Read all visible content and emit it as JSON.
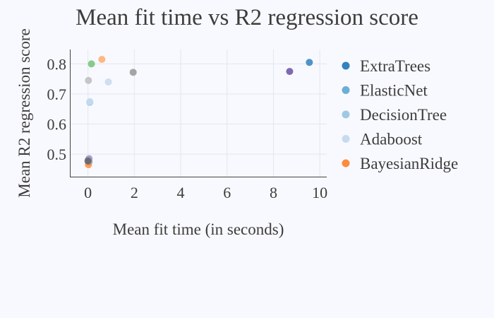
{
  "chart_data": {
    "type": "scatter",
    "title": "Mean fit time vs R2 regression score",
    "xlabel": "Mean fit time (in seconds)",
    "ylabel": "Mean R2 regression score",
    "xlim": [
      -0.75,
      10.3
    ],
    "ylim": [
      0.425,
      0.848
    ],
    "xticks": [
      0,
      2,
      4,
      6,
      8,
      10
    ],
    "yticks": [
      0.5,
      0.6,
      0.7,
      0.8
    ],
    "grid": true,
    "legend_position": "right",
    "series": [
      {
        "name": "ExtraTrees",
        "color": "#3182bd",
        "x": [
          9.55
        ],
        "y": [
          0.805
        ]
      },
      {
        "name": "ElasticNet",
        "color": "#6baed6",
        "x": [
          0.05
        ],
        "y": [
          0.475
        ]
      },
      {
        "name": "DecisionTree",
        "color": "#9ecae1",
        "x": [
          0.08
        ],
        "y": [
          0.672
        ]
      },
      {
        "name": "Adaboost",
        "color": "#c6dbef",
        "x": [
          0.88
        ],
        "y": [
          0.74
        ]
      },
      {
        "name": "BayesianRidge",
        "color": "#fd8d3c",
        "x": [
          0.02
        ],
        "y": [
          0.465
        ]
      },
      {
        "name": "",
        "color": "#fdae6b",
        "x": [
          0.6
        ],
        "y": [
          0.815
        ]
      },
      {
        "name": "",
        "color": "#74c476",
        "x": [
          0.15
        ],
        "y": [
          0.8
        ]
      },
      {
        "name": "",
        "color": "#9e9ac8",
        "x": [
          0.05
        ],
        "y": [
          0.485
        ]
      },
      {
        "name": "",
        "color": "#6a51a3",
        "x": [
          8.7
        ],
        "y": [
          0.775
        ]
      },
      {
        "name": "",
        "color": "#969696",
        "x": [
          1.95
        ],
        "y": [
          0.772
        ]
      },
      {
        "name": "",
        "color": "#bdbdbd",
        "x": [
          0.02
        ],
        "y": [
          0.745
        ]
      },
      {
        "name": "",
        "color": "#c6dbef",
        "x": [
          0.08
        ],
        "y": [
          0.675
        ]
      },
      {
        "name": "",
        "color": "#9e9ac8",
        "x": [
          0.02
        ],
        "y": [
          0.482
        ]
      },
      {
        "name": "",
        "color": "#636363",
        "x": [
          0.0
        ],
        "y": [
          0.477
        ]
      }
    ],
    "legend": [
      "ExtraTrees",
      "ElasticNet",
      "DecisionTree",
      "Adaboost",
      "BayesianRidge"
    ]
  }
}
